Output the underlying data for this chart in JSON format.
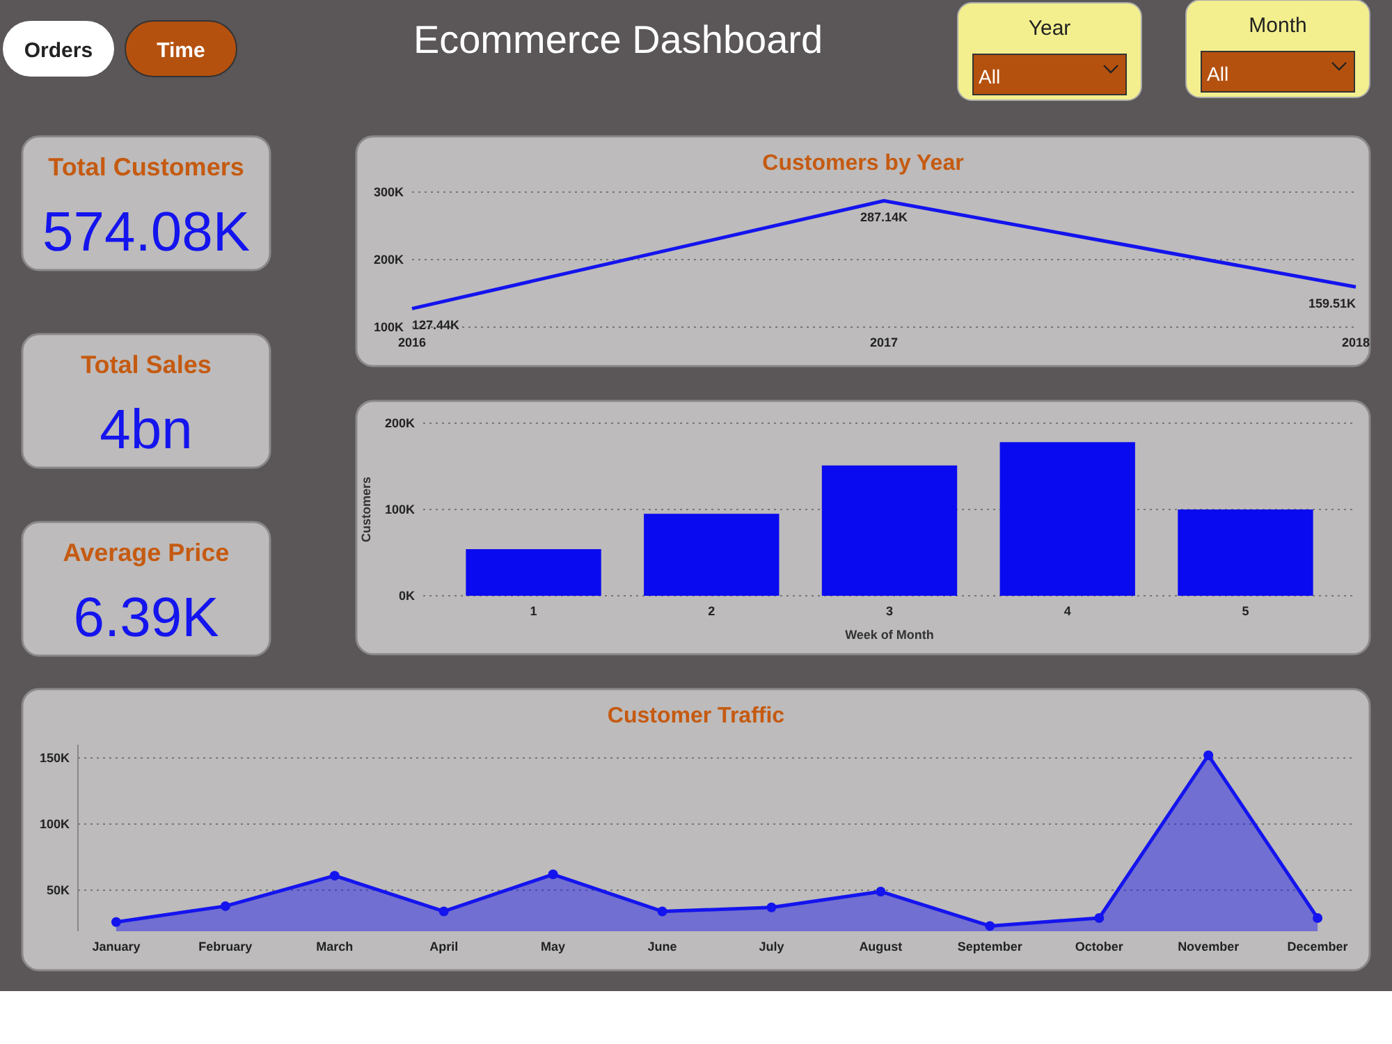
{
  "chart_data": [
    {
      "type": "other",
      "title": "Ecommerce Dashboard",
      "annotations": [
        "Orders",
        "Time",
        "Year",
        "All",
        "Month",
        "All"
      ]
    },
    {
      "type": "other",
      "title": "Total Customers",
      "annotations": [
        "574.08K"
      ]
    },
    {
      "type": "other",
      "title": "Total Sales",
      "annotations": [
        "4bn"
      ]
    },
    {
      "type": "other",
      "title": "Average Price",
      "annotations": [
        "6.39K"
      ]
    },
    {
      "type": "line",
      "title": "Customers by Year",
      "categories": [
        "2016",
        "2017",
        "2018"
      ],
      "values": [
        127440,
        287140,
        159510
      ],
      "value_labels": [
        "127.44K",
        "287.14K",
        "159.51K"
      ],
      "color": "#1414ee",
      "ylim": [
        100000,
        300000
      ],
      "yticks": [
        {
          "value": 100000,
          "label": "100K"
        },
        {
          "value": 200000,
          "label": "200K"
        },
        {
          "value": 300000,
          "label": "300K"
        }
      ],
      "grid": "y"
    },
    {
      "type": "bar",
      "categories": [
        "1",
        "2",
        "3",
        "4",
        "5"
      ],
      "values": [
        54000,
        95000,
        151000,
        178000,
        100000
      ],
      "color": "#0a0af0",
      "xlabel": "Week of Month",
      "ylabel": "Customers",
      "ylim": [
        0,
        200000
      ],
      "yticks": [
        {
          "value": 0,
          "label": "0K"
        },
        {
          "value": 100000,
          "label": "100K"
        },
        {
          "value": 200000,
          "label": "200K"
        }
      ],
      "grid": "y"
    },
    {
      "type": "area",
      "title": "Customer Traffic",
      "categories": [
        "January",
        "February",
        "March",
        "April",
        "May",
        "June",
        "July",
        "August",
        "September",
        "October",
        "November",
        "December"
      ],
      "values": [
        26000,
        38000,
        61000,
        34000,
        62000,
        34000,
        37000,
        49000,
        23000,
        29000,
        152000,
        29000
      ],
      "color": "#1414ee",
      "marker": "circle",
      "ylim": [
        19000,
        160000
      ],
      "yticks": [
        {
          "value": 50000,
          "label": "50K"
        },
        {
          "value": 100000,
          "label": "100K"
        },
        {
          "value": 150000,
          "label": "150K"
        }
      ],
      "grid": "y"
    }
  ]
}
